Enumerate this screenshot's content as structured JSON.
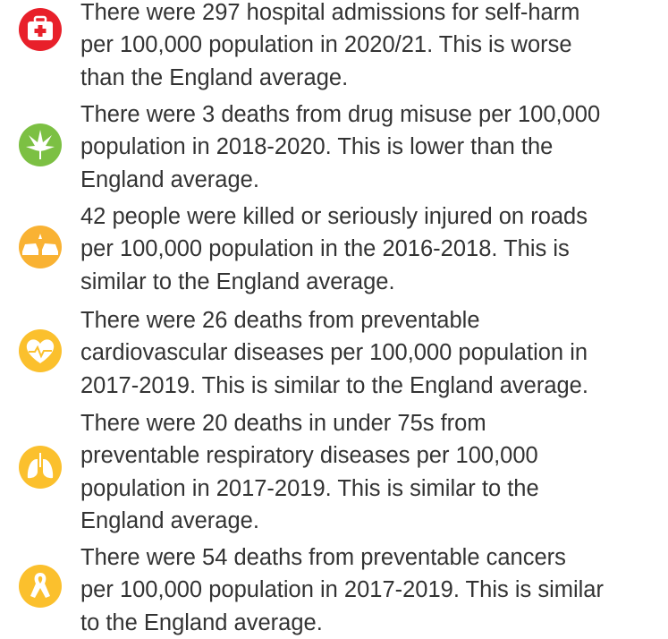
{
  "items": [
    {
      "lines": [
        "There were 297 hospital admissions for self-harm",
        "per 100,000 population in 2020/21. This is worse",
        "than the England average."
      ]
    },
    {
      "lines": [
        "There were 3 deaths from drug misuse per 100,000",
        "population in 2018-2020. This is lower than the",
        "England average."
      ]
    },
    {
      "lines": [
        "42 people were killed or seriously injured on roads",
        "per 100,000 population in the 2016-2018. This is",
        "similar to the England average."
      ]
    },
    {
      "lines": [
        "There were 26 deaths from preventable",
        "cardiovascular diseases per 100,000 population in",
        "2017-2019. This is similar to the England average."
      ]
    },
    {
      "lines": [
        "There were 20 deaths in under 75s from",
        "preventable respiratory diseases per 100,000",
        "population in 2017-2019. This is similar to the",
        "England average."
      ]
    },
    {
      "lines": [
        "There were 54 deaths from preventable cancers",
        "per 100,000 population in 2017-2019. This is similar",
        "to the England average."
      ]
    }
  ]
}
